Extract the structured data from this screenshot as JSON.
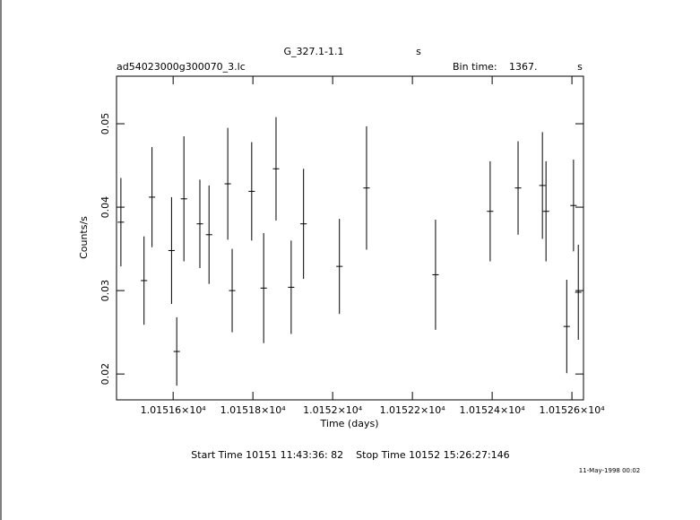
{
  "chart_data": {
    "type": "errorbar",
    "title": "G_327.1-1.1",
    "title_unit": "s",
    "file": "ad54023000g300070_3.lc",
    "bin_time_label": "Bin time:",
    "bin_time": "1367.",
    "bin_time_unit": "s",
    "xlabel": "Time (days)",
    "ylabel": "Counts/s",
    "footer": "Start Time 10151 11:43:36: 82    Stop Time 10152 15:26:27:146",
    "date": "11-May-1998 00:02",
    "color": "#000000",
    "x": [
      10151.469,
      10151.527,
      10151.547,
      10151.596,
      10151.609,
      10151.627,
      10151.667,
      10151.69,
      10151.737,
      10151.748,
      10151.797,
      10151.827,
      10151.858,
      10151.896,
      10151.927,
      10152.017,
      10152.085,
      10152.258,
      10152.395,
      10152.465,
      10152.526,
      10152.535,
      10152.587,
      10152.604,
      10152.616
    ],
    "values": [
      0.0382,
      0.0312,
      0.0412,
      0.0348,
      0.0227,
      0.041,
      0.038,
      0.0367,
      0.0428,
      0.03,
      0.0419,
      0.0303,
      0.0446,
      0.0304,
      0.038,
      0.0329,
      0.0423,
      0.0319,
      0.0395,
      0.0423,
      0.0426,
      0.0395,
      0.0257,
      0.0402,
      0.0298
    ],
    "errors": [
      0.0053,
      0.0053,
      0.006,
      0.0064,
      0.0041,
      0.0075,
      0.0053,
      0.0059,
      0.0067,
      0.005,
      0.0059,
      0.0066,
      0.0062,
      0.0056,
      0.0066,
      0.0057,
      0.0074,
      0.0066,
      0.006,
      0.0056,
      0.0064,
      0.006,
      0.0056,
      0.0055,
      0.0057
    ],
    "xerr": 0.008,
    "xlim": [
      10151.458,
      10152.629
    ],
    "ylim": [
      0.0169,
      0.0557
    ],
    "xticks": [
      {
        "value": 10151.6,
        "label": "1.01516×10⁴"
      },
      {
        "value": 10151.8,
        "label": "1.01518×10⁴"
      },
      {
        "value": 10152.0,
        "label": "1.0152×10⁴"
      },
      {
        "value": 10152.2,
        "label": "1.01522×10⁴"
      },
      {
        "value": 10152.4,
        "label": "1.01524×10⁴"
      },
      {
        "value": 10152.6,
        "label": "1.01526×10⁴"
      }
    ],
    "yticks": [
      0.02,
      0.03,
      0.04,
      0.05
    ]
  }
}
